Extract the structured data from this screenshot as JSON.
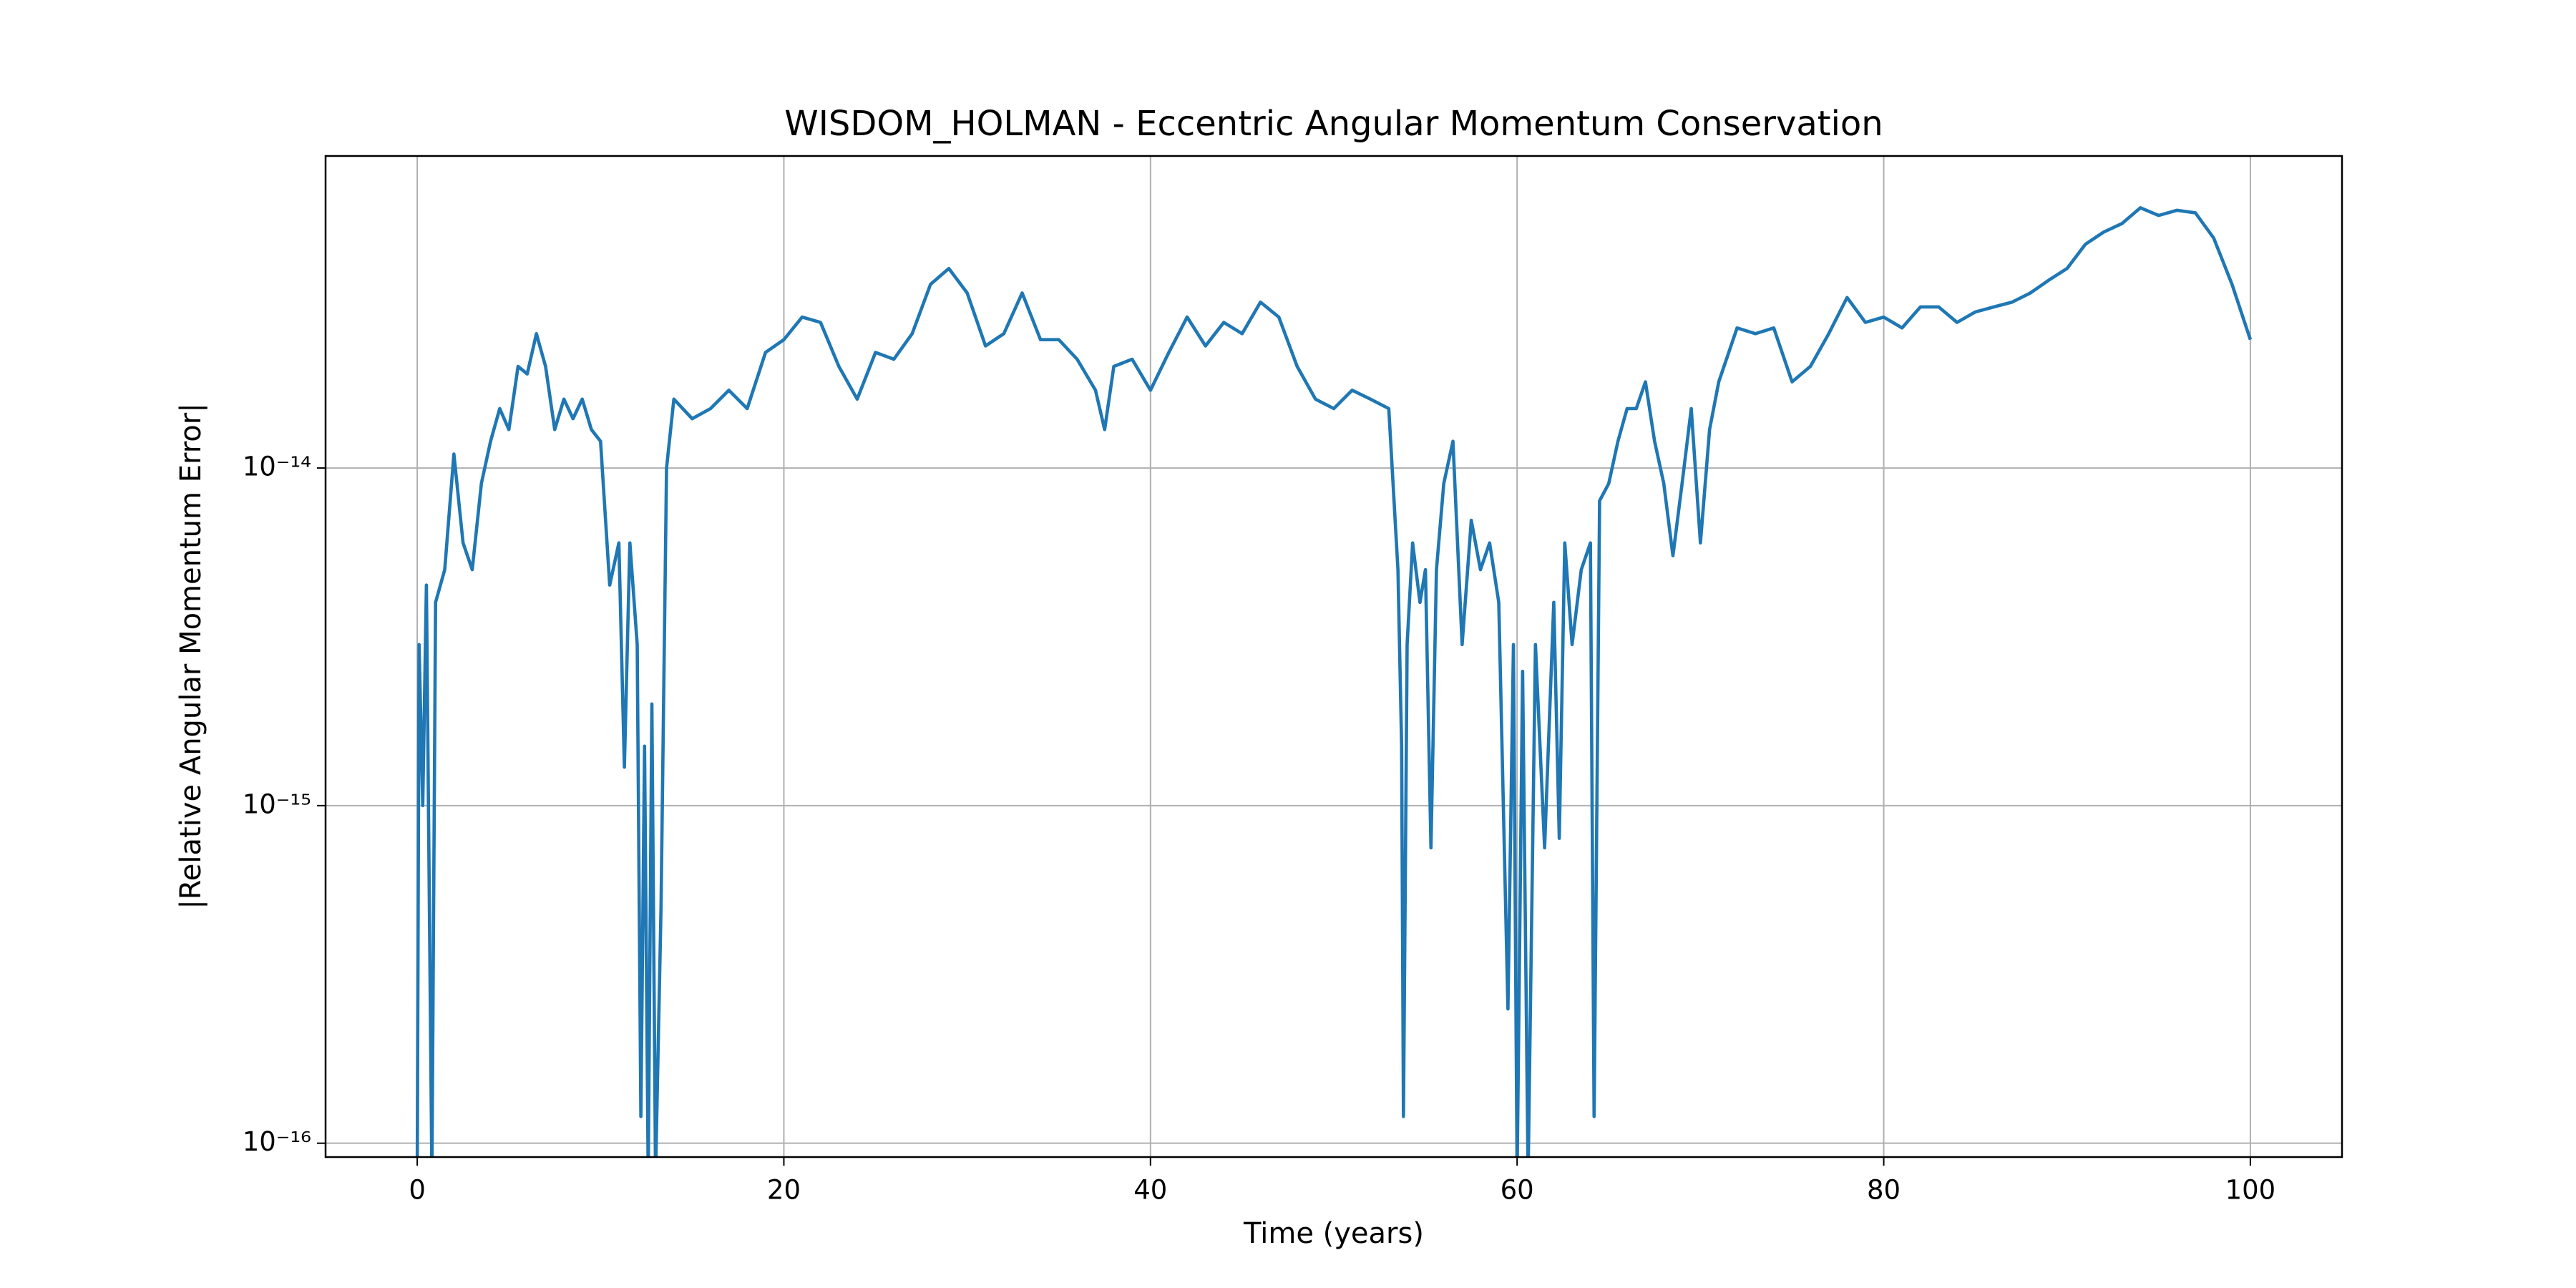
{
  "chart_data": {
    "type": "line",
    "title": "WISDOM_HOLMAN - Eccentric Angular Momentum Conservation",
    "xlabel": "Time (years)",
    "ylabel": "|Relative Angular Momentum Error|",
    "color": "#1f77b4",
    "log_y": true,
    "grid": true,
    "xlim": [
      -5,
      105
    ],
    "ylim": [
      9.1e-17,
      8.4e-14
    ],
    "xticks": [
      0,
      20,
      40,
      60,
      80,
      100
    ],
    "yticks": [
      {
        "value": 1e-16,
        "label": "10⁻¹⁶"
      },
      {
        "value": 1e-15,
        "label": "10⁻¹⁵"
      },
      {
        "value": 1e-14,
        "label": "10⁻¹⁴"
      }
    ],
    "x": [
      0,
      0.1,
      0.3,
      0.5,
      0.8,
      1.0,
      1.5,
      2.0,
      2.5,
      3.0,
      3.5,
      4.0,
      4.5,
      5.0,
      5.5,
      6.0,
      6.5,
      7.0,
      7.5,
      8.0,
      8.5,
      9.0,
      9.5,
      10.0,
      10.5,
      11.0,
      11.3,
      11.6,
      12.0,
      12.2,
      12.4,
      12.6,
      12.8,
      13.0,
      13.3,
      13.6,
      14,
      15,
      16,
      17,
      18,
      19,
      20,
      21,
      22,
      23,
      24,
      25,
      26,
      27,
      28,
      29,
      30,
      31,
      32,
      33,
      34,
      35,
      36,
      37,
      37.5,
      38,
      39,
      40,
      41,
      42,
      43,
      44,
      45,
      46,
      47,
      48,
      49,
      50,
      51,
      52,
      53,
      53.5,
      53.7,
      53.8,
      54.0,
      54.3,
      54.7,
      55.0,
      55.3,
      55.6,
      56,
      56.5,
      57,
      57.5,
      58,
      58.5,
      59,
      59.5,
      59.8,
      60,
      60.3,
      60.6,
      61,
      61.5,
      62,
      62.3,
      62.6,
      63,
      63.5,
      64,
      64.2,
      64.5,
      65,
      65.5,
      66,
      66.5,
      67,
      67.5,
      68,
      68.5,
      69,
      69.5,
      70,
      70.5,
      71,
      72,
      73,
      74,
      75,
      76,
      77,
      78,
      79,
      80,
      81,
      82,
      83,
      84,
      85,
      86,
      87,
      88,
      89,
      90,
      91,
      92,
      93,
      94,
      95,
      96,
      97,
      98,
      99,
      100
    ],
    "values": [
      8e-17,
      3e-15,
      1e-15,
      4.5e-15,
      8e-17,
      4e-15,
      5e-15,
      1.1e-14,
      6e-15,
      5e-15,
      9e-15,
      1.2e-14,
      1.5e-14,
      1.3e-14,
      2e-14,
      1.9e-14,
      2.5e-14,
      2e-14,
      1.3e-14,
      1.6e-14,
      1.4e-14,
      1.6e-14,
      1.3e-14,
      1.2e-14,
      4.5e-15,
      6e-15,
      1.3e-15,
      6e-15,
      3e-15,
      1.2e-16,
      1.5e-15,
      8e-17,
      2e-15,
      8e-17,
      5e-16,
      1e-14,
      1.6e-14,
      1.4e-14,
      1.5e-14,
      1.7e-14,
      1.5e-14,
      2.2e-14,
      2.4e-14,
      2.8e-14,
      2.7e-14,
      2e-14,
      1.6e-14,
      2.2e-14,
      2.1e-14,
      2.5e-14,
      3.5e-14,
      3.9e-14,
      3.3e-14,
      2.3e-14,
      2.5e-14,
      3.3e-14,
      2.4e-14,
      2.4e-14,
      2.1e-14,
      1.7e-14,
      1.3e-14,
      2e-14,
      2.1e-14,
      1.7e-14,
      2.2e-14,
      2.8e-14,
      2.3e-14,
      2.7e-14,
      2.5e-14,
      3.1e-14,
      2.8e-14,
      2e-14,
      1.6e-14,
      1.5e-14,
      1.7e-14,
      1.6e-14,
      1.5e-14,
      5e-15,
      1.5e-15,
      1.2e-16,
      3e-15,
      6e-15,
      4e-15,
      5e-15,
      7.5e-16,
      5e-15,
      9e-15,
      1.2e-14,
      3e-15,
      7e-15,
      5e-15,
      6e-15,
      4e-15,
      2.5e-16,
      3e-15,
      8e-17,
      2.5e-15,
      8e-17,
      3e-15,
      7.5e-16,
      4e-15,
      8e-16,
      6e-15,
      3e-15,
      5e-15,
      6e-15,
      1.2e-16,
      8e-15,
      9e-15,
      1.2e-14,
      1.5e-14,
      1.5e-14,
      1.8e-14,
      1.2e-14,
      9e-15,
      5.5e-15,
      9e-15,
      1.5e-14,
      6e-15,
      1.3e-14,
      1.8e-14,
      2.6e-14,
      2.5e-14,
      2.6e-14,
      1.8e-14,
      2e-14,
      2.5e-14,
      3.2e-14,
      2.7e-14,
      2.8e-14,
      2.6e-14,
      3e-14,
      3e-14,
      2.7e-14,
      2.9e-14,
      3e-14,
      3.1e-14,
      3.3e-14,
      3.6e-14,
      3.9e-14,
      4.6e-14,
      5e-14,
      5.3e-14,
      5.9e-14,
      5.6e-14,
      5.8e-14,
      5.7e-14,
      4.8e-14,
      3.5e-14,
      2.4e-14
    ]
  }
}
